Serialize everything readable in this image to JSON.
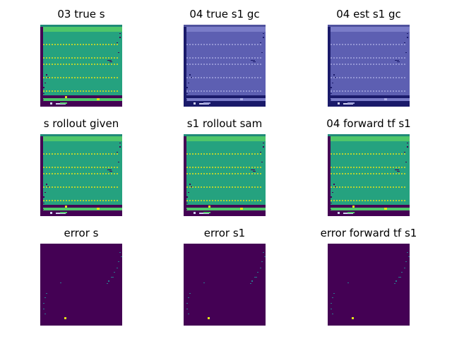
{
  "figure": {
    "titles": [
      "03 true s",
      "04 true s1 gc",
      "04 est s1 gc",
      "s rollout given",
      "s1 rollout sam",
      "04 forward tf s1",
      "error s",
      "error s1",
      "error forward tf s1"
    ]
  },
  "chart_data": {
    "type": "heatmap",
    "grid": "3x3",
    "axes_visible": false,
    "colormap": "viridis",
    "palette": {
      "green_bg": "#25a27f",
      "green_band": "#4fc66a",
      "yellow": "#e6e418",
      "dark_purple": "#440154",
      "blue_bg": "#5d5fb2",
      "blue_band": "#7a7cc8",
      "navy": "#1a1a6a",
      "error_bg": "#440154",
      "error_mark": "#2a788e"
    },
    "panels": [
      {
        "title": "03 true s",
        "scheme": "green"
      },
      {
        "title": "04 true s1 gc",
        "scheme": "blue"
      },
      {
        "title": "04 est s1 gc",
        "scheme": "blue"
      },
      {
        "title": "s rollout given",
        "scheme": "green"
      },
      {
        "title": "s1 rollout sam",
        "scheme": "green"
      },
      {
        "title": "04 forward tf s1",
        "scheme": "green"
      },
      {
        "title": "error s",
        "scheme": "error"
      },
      {
        "title": "error s1",
        "scheme": "error"
      },
      {
        "title": "error forward tf s1",
        "scheme": "error"
      }
    ]
  }
}
